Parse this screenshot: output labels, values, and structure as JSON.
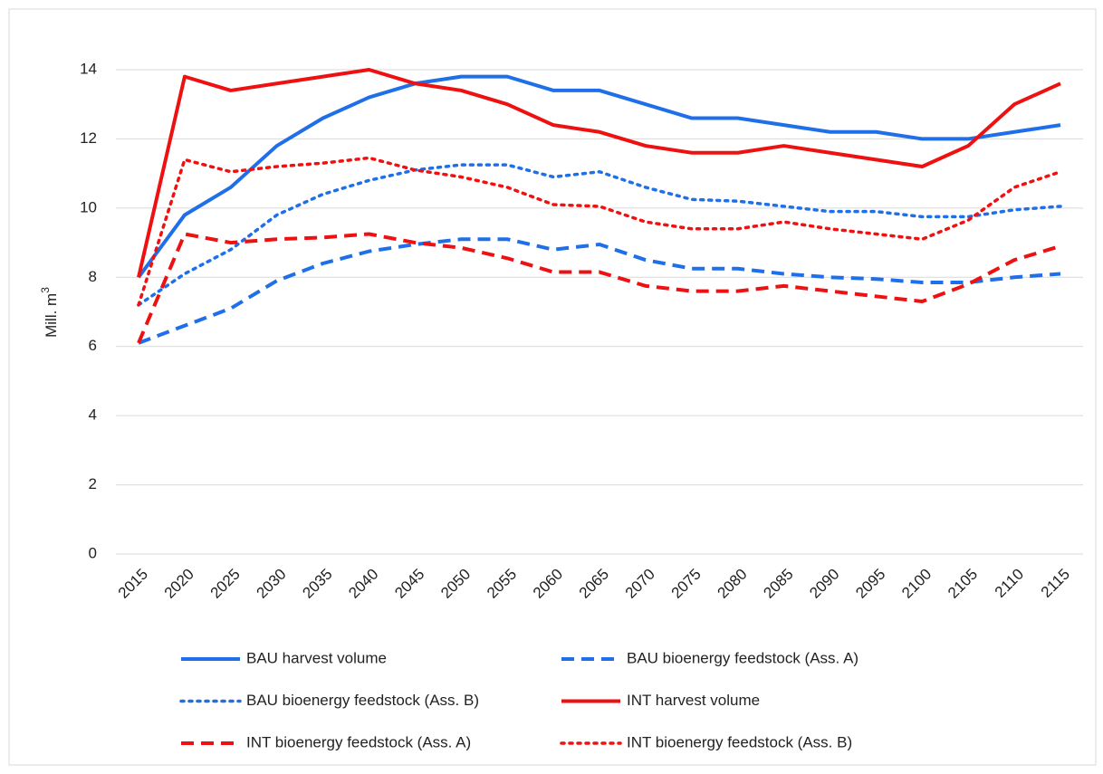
{
  "chart_data": {
    "type": "line",
    "y_label": "Mill. m",
    "y_label_superscript": "3",
    "categories": [
      "2015",
      "2020",
      "2025",
      "2030",
      "2035",
      "2040",
      "2045",
      "2050",
      "2055",
      "2060",
      "2065",
      "2070",
      "2075",
      "2080",
      "2085",
      "2090",
      "2095",
      "2100",
      "2105",
      "2110",
      "2115"
    ],
    "series": [
      {
        "name": "BAU harvest volume",
        "color": "#1f6fe8",
        "dash": "solid",
        "values": [
          8,
          9.8,
          10.6,
          11.8,
          12.6,
          13.2,
          13.6,
          13.8,
          13.8,
          13.4,
          13.4,
          13.0,
          12.6,
          12.6,
          12.4,
          12.2,
          12.2,
          12.0,
          12.0,
          12.2,
          12.4
        ]
      },
      {
        "name": "BAU bioenergy feedstock (Ass. A)",
        "color": "#1f6fe8",
        "dash": "dashed",
        "values": [
          6.1,
          6.6,
          7.1,
          7.9,
          8.4,
          8.75,
          8.95,
          9.1,
          9.1,
          8.8,
          8.95,
          8.5,
          8.25,
          8.25,
          8.1,
          8.0,
          7.95,
          7.85,
          7.85,
          8.0,
          8.1
        ]
      },
      {
        "name": "BAU bioenergy feedstock (Ass. B)",
        "color": "#1f6fe8",
        "dash": "dotted",
        "values": [
          7.2,
          8.1,
          8.8,
          9.8,
          10.4,
          10.8,
          11.1,
          11.25,
          11.25,
          10.9,
          11.05,
          10.6,
          10.25,
          10.2,
          10.05,
          9.9,
          9.9,
          9.75,
          9.75,
          9.95,
          10.05
        ]
      },
      {
        "name": "INT harvest volume",
        "color": "#ee1111",
        "dash": "solid",
        "values": [
          8,
          13.8,
          13.4,
          13.6,
          13.8,
          14.0,
          13.6,
          13.4,
          13.0,
          12.4,
          12.2,
          11.8,
          11.6,
          11.6,
          11.8,
          11.6,
          11.4,
          11.2,
          11.8,
          13.0,
          13.6
        ]
      },
      {
        "name": "INT bioenergy feedstock (Ass. A)",
        "color": "#ee1111",
        "dash": "dashed",
        "values": [
          6.1,
          9.25,
          9.0,
          9.1,
          9.15,
          9.25,
          9.0,
          8.85,
          8.55,
          8.15,
          8.15,
          7.75,
          7.6,
          7.6,
          7.75,
          7.6,
          7.45,
          7.3,
          7.8,
          8.5,
          8.9
        ]
      },
      {
        "name": "INT bioenergy feedstock (Ass. B)",
        "color": "#ee1111",
        "dash": "dotted",
        "values": [
          7.2,
          11.4,
          11.05,
          11.2,
          11.3,
          11.45,
          11.1,
          10.9,
          10.6,
          10.1,
          10.05,
          9.6,
          9.4,
          9.4,
          9.6,
          9.4,
          9.25,
          9.1,
          9.65,
          10.6,
          11.05
        ]
      }
    ],
    "ylim": [
      0,
      14
    ],
    "yticks": [
      0,
      2,
      4,
      6,
      8,
      10,
      12,
      14
    ],
    "grid": true,
    "legend": "bottom"
  }
}
